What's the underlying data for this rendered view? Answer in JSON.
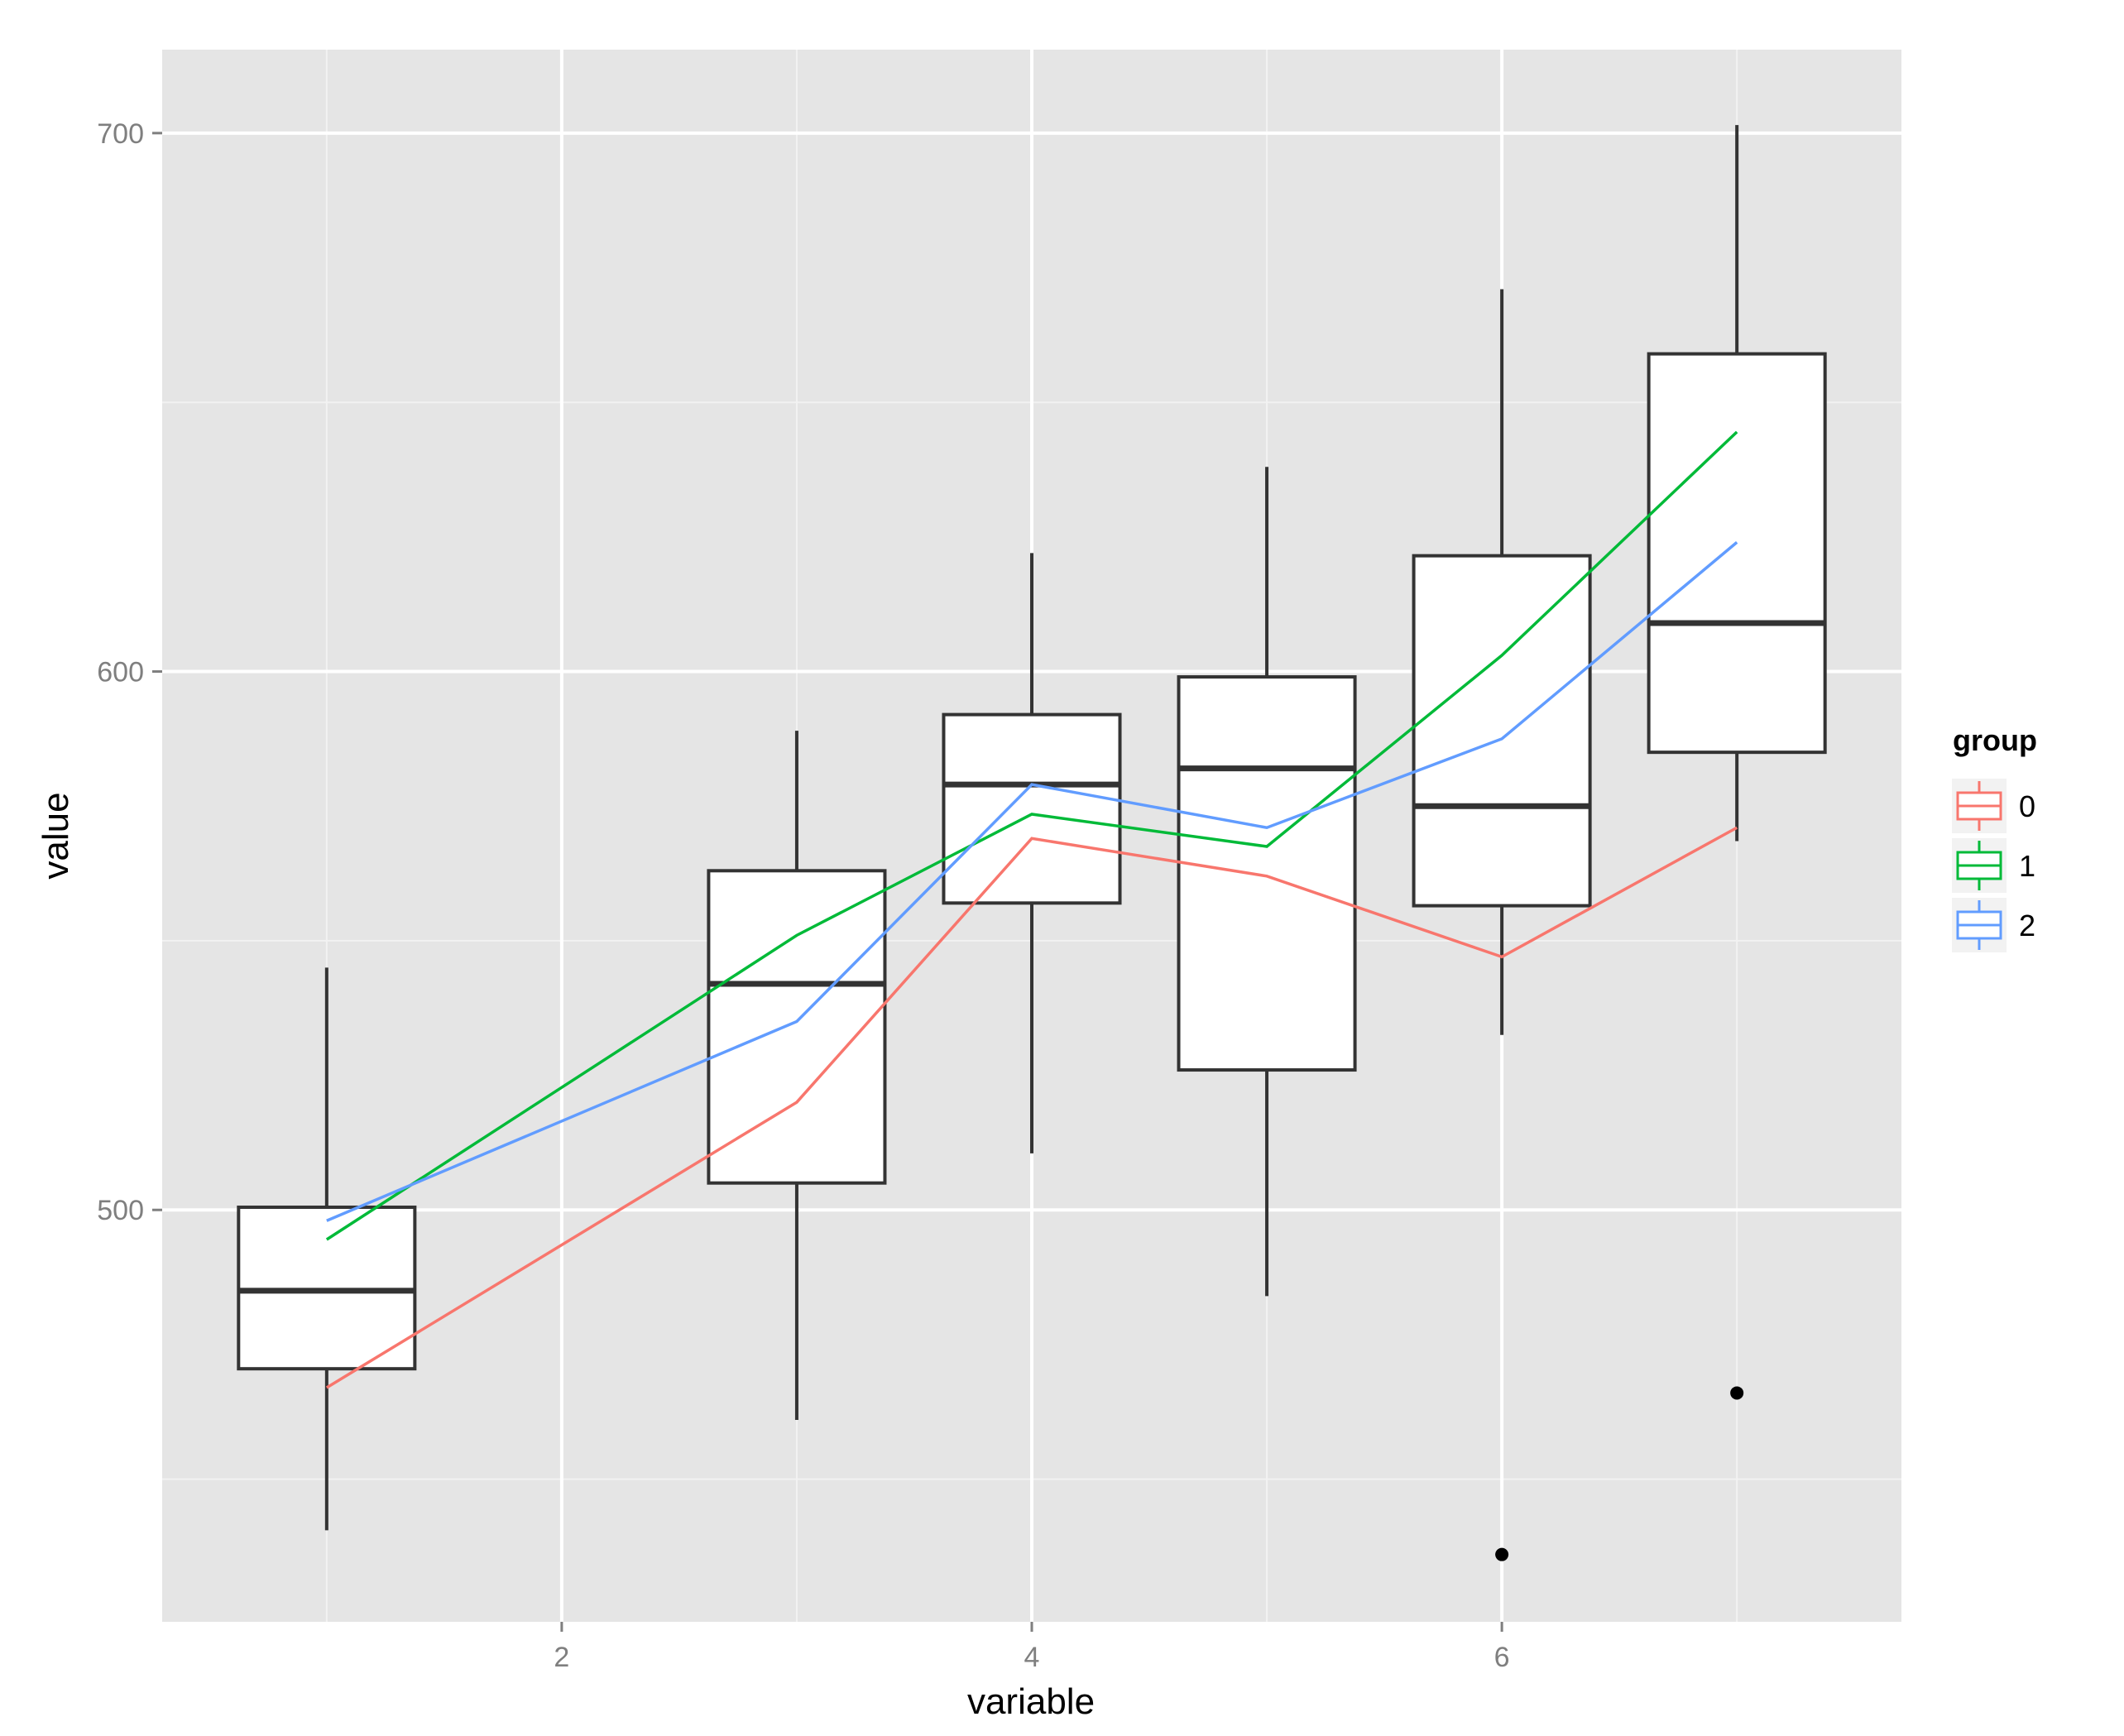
{
  "chart_data": {
    "type": "boxplot",
    "xlabel": "variable",
    "ylabel": "value",
    "xlim": [
      0.3,
      7.7
    ],
    "ylim": [
      423.5,
      715.5
    ],
    "x_ticks": [
      2,
      4,
      6
    ],
    "x_tick_labels": [
      "2",
      "4",
      "6"
    ],
    "y_ticks": [
      500,
      600,
      700
    ],
    "y_tick_labels": [
      "500",
      "600",
      "700"
    ],
    "grid": true,
    "legend": {
      "title": "group",
      "position": "right",
      "entries": [
        "0",
        "1",
        "2"
      ]
    },
    "boxes": [
      {
        "x": 1,
        "whisker_low": 440.5,
        "q1": 470.5,
        "median": 485,
        "q3": 500.5,
        "whisker_high": 545,
        "outliers": []
      },
      {
        "x": 3,
        "whisker_low": 461,
        "q1": 505,
        "median": 542,
        "q3": 563,
        "whisker_high": 589,
        "outliers": []
      },
      {
        "x": 4,
        "whisker_low": 510.5,
        "q1": 557,
        "median": 579,
        "q3": 592,
        "whisker_high": 622,
        "outliers": []
      },
      {
        "x": 5,
        "whisker_low": 484,
        "q1": 526,
        "median": 582,
        "q3": 599,
        "whisker_high": 638,
        "outliers": []
      },
      {
        "x": 6,
        "whisker_low": 532.5,
        "q1": 556.5,
        "median": 575,
        "q3": 621.5,
        "whisker_high": 671,
        "outliers": [
          436
        ]
      },
      {
        "x": 7,
        "whisker_low": 568.5,
        "q1": 585,
        "median": 609,
        "q3": 659,
        "whisker_high": 701.5,
        "outliers": [
          466
        ]
      }
    ],
    "series": [
      {
        "name": "0",
        "color": "#F8766D",
        "x": [
          1,
          3,
          4,
          5,
          6,
          7
        ],
        "y": [
          467,
          520,
          569,
          562,
          547,
          571
        ]
      },
      {
        "name": "1",
        "color": "#00BA38",
        "x": [
          1,
          3,
          4,
          5,
          6,
          7
        ],
        "y": [
          494.5,
          551,
          573.5,
          567.5,
          603,
          644.5
        ]
      },
      {
        "name": "2",
        "color": "#619CFF",
        "x": [
          1,
          3,
          4,
          5,
          6,
          7
        ],
        "y": [
          498,
          535,
          579,
          571,
          587.5,
          624
        ]
      }
    ]
  }
}
